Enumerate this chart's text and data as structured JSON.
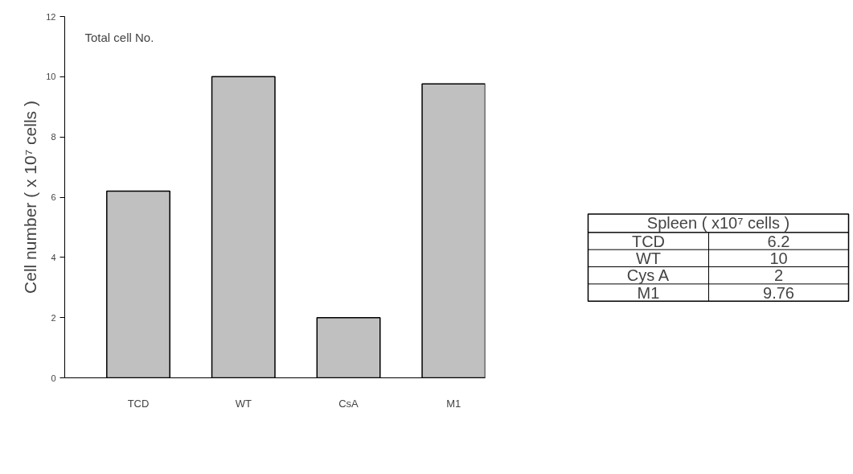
{
  "chart_data": {
    "type": "bar",
    "title": "Total cell No.",
    "ylabel": "Cell number ( x 10⁷ cells )",
    "categories": [
      "TCD",
      "WT",
      "CsA",
      "M1"
    ],
    "values": [
      6.2,
      10,
      2,
      9.76
    ],
    "color": "#c0c0c0",
    "annotations": [
      "Spleen ( x10⁷ cells )",
      "TCD",
      "6.2",
      "WT",
      "10",
      "Cys A",
      "2",
      "M1",
      "9.76"
    ],
    "ylim": [
      0,
      12
    ],
    "yticks": [
      0,
      2,
      4,
      6,
      8,
      10,
      12
    ],
    "grid": false
  }
}
